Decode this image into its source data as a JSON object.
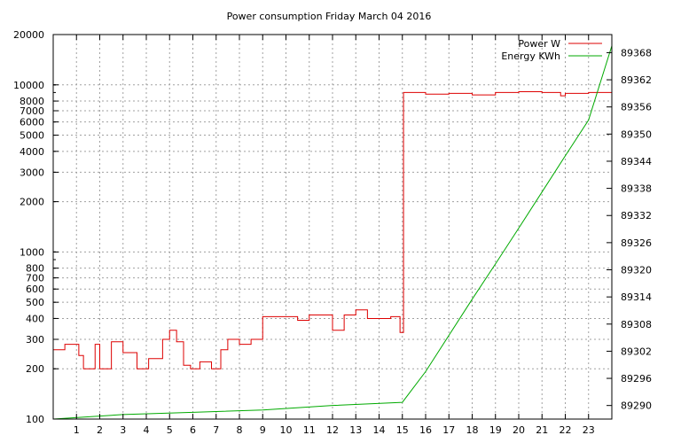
{
  "chart_data": {
    "type": "line",
    "title": "Power consumption Friday March 04 2016",
    "xlabel": "",
    "ylabel": "",
    "x_ticks": [
      "1",
      "2",
      "3",
      "4",
      "5",
      "6",
      "7",
      "8",
      "9",
      "10",
      "11",
      "12",
      "13",
      "14",
      "15",
      "16",
      "17",
      "18",
      "19",
      "20",
      "21",
      "22",
      "23"
    ],
    "xlim": [
      0,
      24
    ],
    "y_left": {
      "scale": "log",
      "lim": [
        100,
        20000
      ],
      "ticks": [
        {
          "v": 100,
          "label": "100"
        },
        {
          "v": 200,
          "label": "200"
        },
        {
          "v": 300,
          "label": "300"
        },
        {
          "v": 400,
          "label": "400"
        },
        {
          "v": 500,
          "label": "500"
        },
        {
          "v": 600,
          "label": "600"
        },
        {
          "v": 700,
          "label": "700"
        },
        {
          "v": 800,
          "label": "800"
        },
        {
          "v": 1000,
          "label": "1000"
        },
        {
          "v": 2000,
          "label": "2000"
        },
        {
          "v": 3000,
          "label": "3000"
        },
        {
          "v": 4000,
          "label": "4000"
        },
        {
          "v": 5000,
          "label": "5000"
        },
        {
          "v": 6000,
          "label": "6000"
        },
        {
          "v": 7000,
          "label": "7000"
        },
        {
          "v": 8000,
          "label": "8000"
        },
        {
          "v": 10000,
          "label": "10000"
        },
        {
          "v": 20000,
          "label": "20000"
        }
      ]
    },
    "y_right": {
      "scale": "linear",
      "lim": [
        89287.0,
        89372.0
      ],
      "ticks": [
        "89290",
        "89296",
        "89302",
        "89308",
        "89314",
        "89320",
        "89326",
        "89332",
        "89338",
        "89344",
        "89350",
        "89356",
        "89362",
        "89368"
      ]
    },
    "grid": true,
    "legend_position": "top-right",
    "series": [
      {
        "name": "Power W",
        "color": "#dd0000",
        "axis": "left",
        "x": [
          0,
          0.5,
          0.5,
          1.1,
          1.1,
          1.3,
          1.3,
          1.8,
          1.8,
          2.0,
          2.0,
          2.5,
          2.5,
          3.0,
          3.0,
          3.6,
          3.6,
          4.1,
          4.1,
          4.7,
          4.7,
          5.0,
          5.0,
          5.3,
          5.3,
          5.6,
          5.6,
          5.9,
          5.9,
          6.3,
          6.3,
          6.8,
          6.8,
          7.2,
          7.2,
          7.5,
          7.5,
          8.0,
          8.0,
          8.5,
          8.5,
          9.0,
          9.0,
          10.0,
          10.0,
          10.5,
          10.5,
          11.0,
          11.0,
          12.0,
          12.0,
          12.5,
          12.5,
          13.0,
          13.0,
          13.5,
          13.5,
          14.5,
          14.5,
          14.9,
          14.9,
          15.05,
          15.05,
          16.0,
          16.0,
          17.0,
          17.0,
          18.0,
          18.0,
          19.0,
          19.0,
          20.0,
          20.0,
          21.0,
          21.0,
          21.8,
          21.8,
          22.0,
          22.0,
          23.0,
          23.0,
          24.0
        ],
        "values": [
          260,
          260,
          280,
          280,
          240,
          240,
          200,
          200,
          280,
          280,
          200,
          200,
          290,
          290,
          250,
          250,
          200,
          200,
          230,
          230,
          300,
          300,
          340,
          340,
          290,
          290,
          210,
          210,
          200,
          200,
          220,
          220,
          200,
          200,
          260,
          260,
          300,
          300,
          280,
          280,
          300,
          300,
          410,
          410,
          410,
          410,
          390,
          390,
          420,
          420,
          340,
          340,
          420,
          420,
          450,
          450,
          400,
          400,
          410,
          410,
          330,
          330,
          9000,
          9000,
          8800,
          8800,
          8900,
          8900,
          8700,
          8700,
          9000,
          9000,
          9100,
          9100,
          9000,
          9000,
          8600,
          8600,
          8900,
          8900,
          9000,
          9000
        ]
      },
      {
        "name": "Energy KWh",
        "color": "#00aa00",
        "axis": "right",
        "x": [
          0,
          3,
          6,
          9,
          12,
          15.0,
          16,
          17,
          18,
          19,
          20,
          21,
          22,
          23,
          24
        ],
        "values": [
          89287.0,
          89288.0,
          89288.5,
          89289.0,
          89290.0,
          89290.7,
          89297.5,
          89305.5,
          89313.5,
          89321.3,
          89329.2,
          89337.2,
          89345.2,
          89353.1,
          89369.5
        ]
      }
    ]
  }
}
